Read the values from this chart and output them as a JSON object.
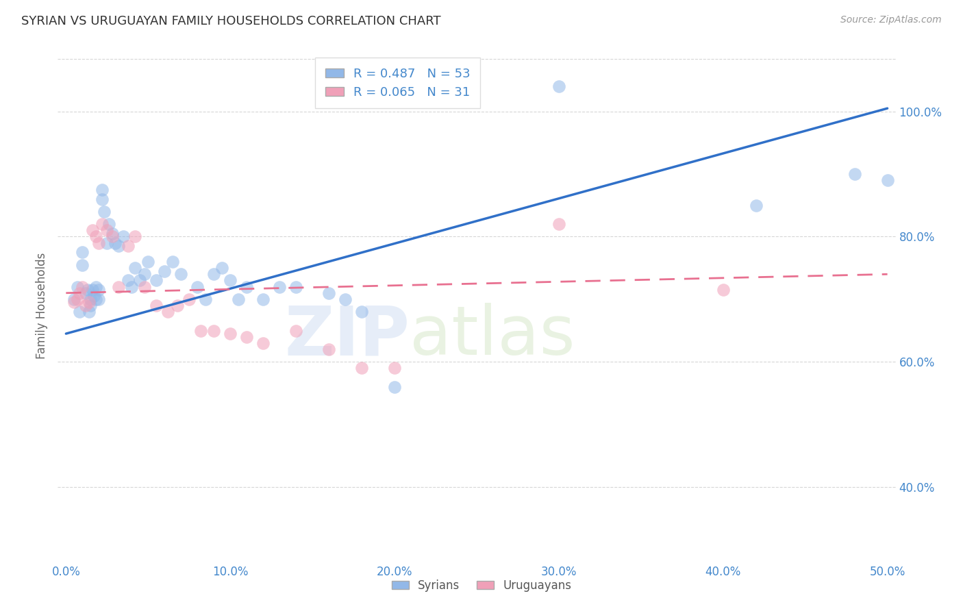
{
  "title": "SYRIAN VS URUGUAYAN FAMILY HOUSEHOLDS CORRELATION CHART",
  "source": "Source: ZipAtlas.com",
  "xlabel_ticks": [
    "0.0%",
    "10.0%",
    "20.0%",
    "30.0%",
    "40.0%",
    "50.0%"
  ],
  "xlabel_vals": [
    0.0,
    0.1,
    0.2,
    0.3,
    0.4,
    0.5
  ],
  "ylabel_ticks": [
    "40.0%",
    "60.0%",
    "80.0%",
    "100.0%"
  ],
  "ylabel_vals": [
    0.4,
    0.6,
    0.8,
    1.0
  ],
  "xlim": [
    -0.005,
    0.505
  ],
  "ylim": [
    0.28,
    1.1
  ],
  "syrians_R": 0.487,
  "syrians_N": 53,
  "uruguayans_R": 0.065,
  "uruguayans_N": 31,
  "watermark_zip": "ZIP",
  "watermark_atlas": "atlas",
  "syrian_color": "#92B8E8",
  "uruguayan_color": "#F0A0B8",
  "syrian_line_color": "#3070C8",
  "uruguayan_line_color": "#E87090",
  "syrians_x": [
    0.005,
    0.007,
    0.008,
    0.01,
    0.01,
    0.012,
    0.013,
    0.014,
    0.015,
    0.015,
    0.016,
    0.017,
    0.018,
    0.018,
    0.02,
    0.02,
    0.022,
    0.022,
    0.023,
    0.025,
    0.026,
    0.028,
    0.03,
    0.032,
    0.035,
    0.038,
    0.04,
    0.042,
    0.045,
    0.048,
    0.05,
    0.055,
    0.06,
    0.065,
    0.07,
    0.08,
    0.085,
    0.09,
    0.095,
    0.1,
    0.105,
    0.11,
    0.12,
    0.13,
    0.14,
    0.16,
    0.17,
    0.18,
    0.2,
    0.3,
    0.42,
    0.48,
    0.5
  ],
  "syrians_y": [
    0.7,
    0.72,
    0.68,
    0.755,
    0.775,
    0.71,
    0.715,
    0.68,
    0.7,
    0.69,
    0.715,
    0.705,
    0.7,
    0.72,
    0.715,
    0.7,
    0.86,
    0.875,
    0.84,
    0.79,
    0.82,
    0.805,
    0.79,
    0.785,
    0.8,
    0.73,
    0.72,
    0.75,
    0.73,
    0.74,
    0.76,
    0.73,
    0.745,
    0.76,
    0.74,
    0.72,
    0.7,
    0.74,
    0.75,
    0.73,
    0.7,
    0.72,
    0.7,
    0.72,
    0.72,
    0.71,
    0.7,
    0.68,
    0.56,
    1.04,
    0.85,
    0.9,
    0.89
  ],
  "uruguayans_x": [
    0.005,
    0.007,
    0.008,
    0.01,
    0.012,
    0.014,
    0.016,
    0.018,
    0.02,
    0.022,
    0.025,
    0.028,
    0.032,
    0.038,
    0.042,
    0.048,
    0.055,
    0.062,
    0.068,
    0.075,
    0.082,
    0.09,
    0.1,
    0.11,
    0.12,
    0.14,
    0.16,
    0.18,
    0.2,
    0.3,
    0.4
  ],
  "uruguayans_y": [
    0.695,
    0.7,
    0.71,
    0.72,
    0.69,
    0.695,
    0.81,
    0.8,
    0.79,
    0.82,
    0.81,
    0.8,
    0.72,
    0.785,
    0.8,
    0.72,
    0.69,
    0.68,
    0.69,
    0.7,
    0.65,
    0.65,
    0.645,
    0.64,
    0.63,
    0.65,
    0.62,
    0.59,
    0.59,
    0.82,
    0.715
  ],
  "syrian_trendline_x": [
    0.0,
    0.5
  ],
  "syrian_trendline_y": [
    0.645,
    1.005
  ],
  "uruguayan_trendline_x": [
    0.0,
    0.5
  ],
  "uruguayan_trendline_y": [
    0.71,
    0.74
  ]
}
